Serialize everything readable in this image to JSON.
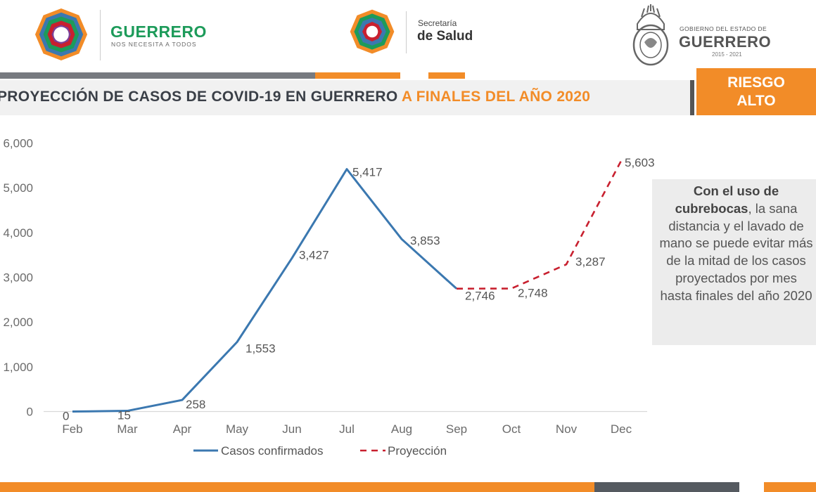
{
  "header": {
    "brand1_name": "GUERRERO",
    "brand1_sub": "NOS NECESITA A TODOS",
    "brand2_top": "Secretaría",
    "brand2_name": "de Salud",
    "gov_top": "GOBIERNO DEL ESTADO DE",
    "gov_name": "GUERRERO",
    "gov_years": "2015 - 2021"
  },
  "title": {
    "main": "PROYECCIÓN DE CASOS DE COVID-19 EN GUERRERO ",
    "highlight": "A FINALES DEL AÑO 2020"
  },
  "risk": {
    "line1": "RIESGO",
    "line2": "ALTO"
  },
  "note": {
    "bold": "Con el uso de cubrebocas",
    "rest": ", la sana distancia y el lavado de mano se puede evitar más de la mitad de los casos proyectados por mes hasta finales del año 2020"
  },
  "colors": {
    "orange": "#f28c28",
    "confirmed": "#3b78b0",
    "projection": "#c8202f",
    "gray": "#777a80"
  },
  "chart_data": {
    "type": "line",
    "categories": [
      "Feb",
      "Mar",
      "Apr",
      "May",
      "Jun",
      "Jul",
      "Aug",
      "Sep",
      "Oct",
      "Nov",
      "Dec"
    ],
    "ylim": [
      0,
      6000
    ],
    "yticks": [
      0,
      1000,
      2000,
      3000,
      4000,
      5000,
      6000
    ],
    "ytick_labels": [
      "0",
      "1,000",
      "2,000",
      "3,000",
      "4,000",
      "5,000",
      "6,000"
    ],
    "legend_position": "bottom",
    "series": [
      {
        "name": "Casos confirmados",
        "style": "solid",
        "values": [
          0,
          15,
          258,
          1553,
          3427,
          5417,
          3853,
          2746,
          null,
          null,
          null
        ],
        "labels": [
          "0",
          "15",
          "258",
          "1,553",
          "3,427",
          "5,417",
          "3,853",
          "2,746",
          null,
          null,
          null
        ]
      },
      {
        "name": "Proyección",
        "style": "dashed",
        "values": [
          null,
          null,
          null,
          null,
          null,
          null,
          null,
          2746,
          2748,
          3287,
          5603
        ],
        "labels": [
          null,
          null,
          null,
          null,
          null,
          null,
          null,
          null,
          "2,748",
          "3,287",
          "5,603"
        ]
      }
    ]
  }
}
